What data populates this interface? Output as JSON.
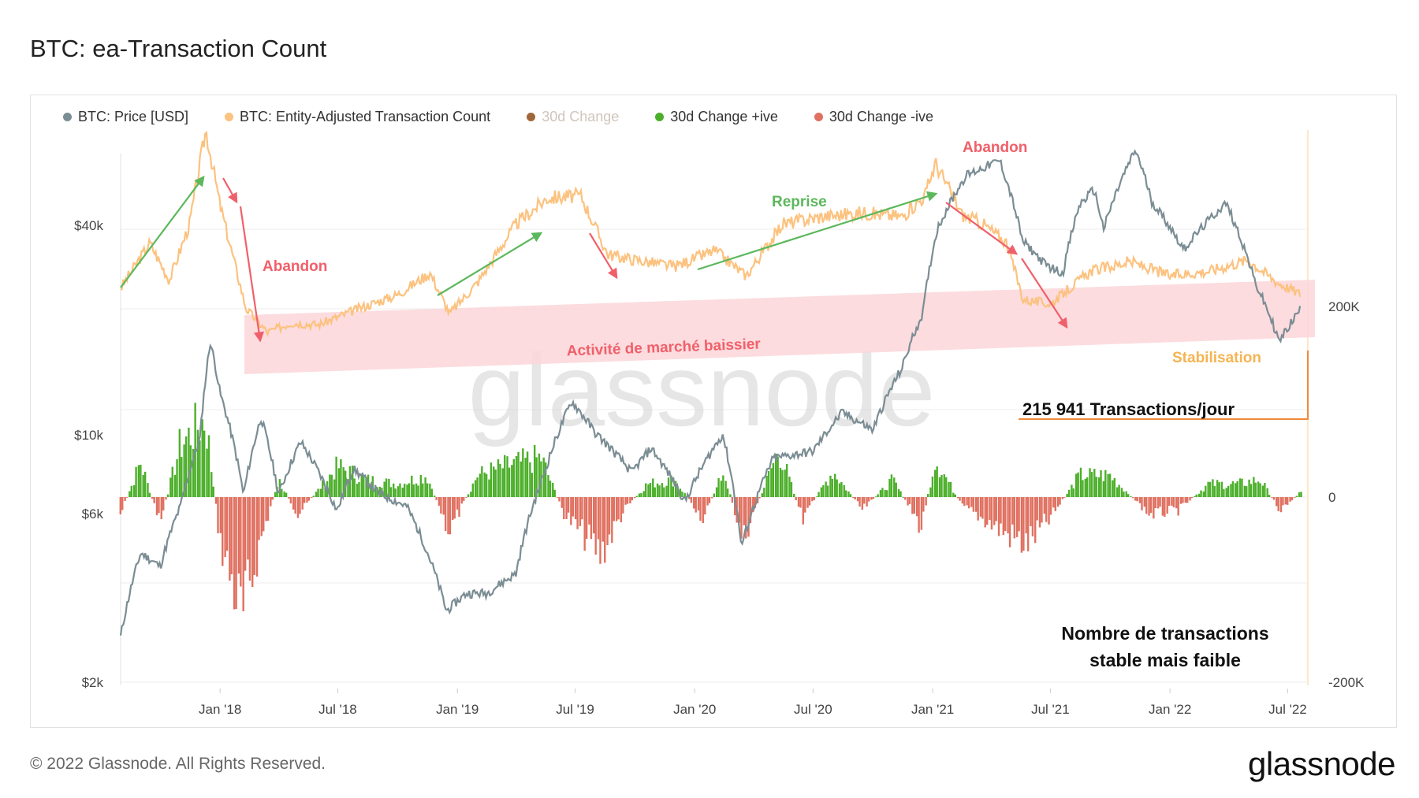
{
  "page": {
    "title": "BTC: ea-Transaction Count",
    "footer": "© 2022 Glassnode. All Rights Reserved.",
    "brand": "glassnode",
    "watermark": "glassnode"
  },
  "legend": [
    {
      "label": "BTC: Price [USD]",
      "color": "#7b8d94"
    },
    {
      "label": "BTC: Entity-Adjusted Transaction Count",
      "color": "#fcc27f"
    },
    {
      "label": "30d Change",
      "color": "#a0683a",
      "muted": true
    },
    {
      "label": "30d Change +ive",
      "color": "#4caf2a"
    },
    {
      "label": "30d Change -ive",
      "color": "#e07060"
    }
  ],
  "annotations": {
    "abandon_1": "Abandon",
    "abandon_2": "Abandon",
    "reprise": "Reprise",
    "bear_market": "Activité de marché baissier",
    "stabilisation": "Stabilisation",
    "tx_per_day": "215 941 Transactions/jour",
    "note_line1": "Nombre de transactions",
    "note_line2": "stable mais faible"
  },
  "colors": {
    "price": "#7b8d94",
    "tx": "#fcc27f",
    "positive": "#4caf2a",
    "negative": "#e07060",
    "band": "#fcd6d9",
    "arrow_up": "#5cb85c",
    "arrow_down": "#f0606a",
    "stabil": "#f5b453",
    "marker": "#f08a3c"
  },
  "chart_data": {
    "type": "line",
    "x_ticks": [
      "Jan '18",
      "Jul '18",
      "Jan '19",
      "Jul '19",
      "Jan '20",
      "Jul '20",
      "Jan '21",
      "Jul '21",
      "Jan '22",
      "Jul '22"
    ],
    "y_left_ticks": [
      "$40k",
      "$10k",
      "$6k",
      "$2k"
    ],
    "y_right_ticks": [
      "200K",
      "0",
      "-200K"
    ],
    "y_left_scale": "log",
    "series": [
      {
        "name": "BTC: Price [USD]",
        "points": [
          [
            "2017-08-01",
            2700
          ],
          [
            "2017-09-01",
            4700
          ],
          [
            "2017-10-01",
            4300
          ],
          [
            "2017-11-01",
            6400
          ],
          [
            "2017-12-01",
            10000
          ],
          [
            "2017-12-17",
            19000
          ],
          [
            "2018-01-01",
            13500
          ],
          [
            "2018-02-06",
            6900
          ],
          [
            "2018-03-05",
            11500
          ],
          [
            "2018-04-01",
            6900
          ],
          [
            "2018-05-05",
            9800
          ],
          [
            "2018-06-30",
            6200
          ],
          [
            "2018-07-25",
            8200
          ],
          [
            "2018-09-01",
            7000
          ],
          [
            "2018-10-15",
            6400
          ],
          [
            "2018-11-20",
            4500
          ],
          [
            "2018-12-15",
            3200
          ],
          [
            "2019-01-15",
            3600
          ],
          [
            "2019-02-15",
            3600
          ],
          [
            "2019-04-01",
            4100
          ],
          [
            "2019-05-15",
            8000
          ],
          [
            "2019-06-26",
            12800
          ],
          [
            "2019-08-01",
            10400
          ],
          [
            "2019-09-26",
            8000
          ],
          [
            "2019-10-26",
            9400
          ],
          [
            "2019-12-17",
            6600
          ],
          [
            "2020-02-13",
            10300
          ],
          [
            "2020-03-13",
            4900
          ],
          [
            "2020-05-01",
            8800
          ],
          [
            "2020-07-01",
            9200
          ],
          [
            "2020-08-15",
            11900
          ],
          [
            "2020-10-01",
            10600
          ],
          [
            "2020-11-15",
            16000
          ],
          [
            "2020-12-17",
            23000
          ],
          [
            "2021-01-08",
            40000
          ],
          [
            "2021-02-21",
            57000
          ],
          [
            "2021-04-14",
            63000
          ],
          [
            "2021-05-19",
            37000
          ],
          [
            "2021-06-22",
            31800
          ],
          [
            "2021-07-20",
            29800
          ],
          [
            "2021-08-15",
            47000
          ],
          [
            "2021-09-06",
            52000
          ],
          [
            "2021-09-21",
            40000
          ],
          [
            "2021-11-09",
            67500
          ],
          [
            "2021-12-04",
            48000
          ],
          [
            "2022-01-22",
            35000
          ],
          [
            "2022-03-28",
            47500
          ],
          [
            "2022-05-12",
            28000
          ],
          [
            "2022-06-18",
            19000
          ],
          [
            "2022-07-20",
            23500
          ]
        ]
      },
      {
        "name": "BTC: Entity-Adjusted Transaction Count",
        "points": [
          [
            "2017-08-01",
            222000
          ],
          [
            "2017-09-15",
            270000
          ],
          [
            "2017-10-15",
            230000
          ],
          [
            "2017-11-15",
            290000
          ],
          [
            "2017-12-10",
            390000
          ],
          [
            "2018-01-01",
            310000
          ],
          [
            "2018-02-10",
            200000
          ],
          [
            "2018-03-15",
            175000
          ],
          [
            "2018-04-20",
            185000
          ],
          [
            "2018-06-01",
            183000
          ],
          [
            "2018-08-01",
            200000
          ],
          [
            "2018-10-01",
            215000
          ],
          [
            "2018-11-20",
            238000
          ],
          [
            "2018-12-20",
            195000
          ],
          [
            "2019-02-01",
            228000
          ],
          [
            "2019-04-01",
            290000
          ],
          [
            "2019-05-20",
            318000
          ],
          [
            "2019-07-10",
            320000
          ],
          [
            "2019-08-20",
            258000
          ],
          [
            "2019-10-01",
            252000
          ],
          [
            "2019-12-01",
            245000
          ],
          [
            "2020-02-01",
            262000
          ],
          [
            "2020-03-20",
            235000
          ],
          [
            "2020-05-15",
            290000
          ],
          [
            "2020-07-15",
            298000
          ],
          [
            "2020-09-15",
            302000
          ],
          [
            "2020-11-15",
            298000
          ],
          [
            "2020-12-20",
            320000
          ],
          [
            "2021-01-05",
            355000
          ],
          [
            "2021-02-15",
            300000
          ],
          [
            "2021-03-20",
            290000
          ],
          [
            "2021-04-25",
            270000
          ],
          [
            "2021-05-20",
            210000
          ],
          [
            "2021-07-01",
            205000
          ],
          [
            "2021-09-01",
            240000
          ],
          [
            "2021-11-01",
            250000
          ],
          [
            "2022-01-01",
            235000
          ],
          [
            "2022-03-01",
            240000
          ],
          [
            "2022-05-01",
            252000
          ],
          [
            "2022-06-15",
            228000
          ],
          [
            "2022-07-20",
            215941
          ]
        ]
      },
      {
        "name": "30d Change +ive / -ive",
        "points": [
          [
            "2017-08-01",
            -20000
          ],
          [
            "2017-09-01",
            40000
          ],
          [
            "2017-10-01",
            -30000
          ],
          [
            "2017-11-01",
            60000
          ],
          [
            "2017-12-10",
            90000
          ],
          [
            "2018-01-01",
            -50000
          ],
          [
            "2018-02-05",
            -140000
          ],
          [
            "2018-03-01",
            -60000
          ],
          [
            "2018-04-01",
            20000
          ],
          [
            "2018-05-01",
            -20000
          ],
          [
            "2018-07-01",
            35000
          ],
          [
            "2018-08-15",
            20000
          ],
          [
            "2018-10-01",
            15000
          ],
          [
            "2018-11-15",
            25000
          ],
          [
            "2018-12-20",
            -40000
          ],
          [
            "2019-02-01",
            25000
          ],
          [
            "2019-03-15",
            35000
          ],
          [
            "2019-05-10",
            45000
          ],
          [
            "2019-06-15",
            -20000
          ],
          [
            "2019-08-10",
            -65000
          ],
          [
            "2019-09-15",
            -15000
          ],
          [
            "2019-10-20",
            15000
          ],
          [
            "2019-12-01",
            20000
          ],
          [
            "2020-01-15",
            -25000
          ],
          [
            "2020-02-15",
            30000
          ],
          [
            "2020-03-15",
            -50000
          ],
          [
            "2020-05-10",
            55000
          ],
          [
            "2020-06-15",
            -25000
          ],
          [
            "2020-08-01",
            30000
          ],
          [
            "2020-09-15",
            -15000
          ],
          [
            "2020-11-01",
            20000
          ],
          [
            "2020-12-15",
            -35000
          ],
          [
            "2021-01-05",
            45000
          ],
          [
            "2021-02-15",
            -10000
          ],
          [
            "2021-03-20",
            -25000
          ],
          [
            "2021-05-01",
            -45000
          ],
          [
            "2021-05-25",
            -55000
          ],
          [
            "2021-07-01",
            -25000
          ],
          [
            "2021-08-15",
            25000
          ],
          [
            "2021-10-01",
            25000
          ],
          [
            "2021-12-01",
            -20000
          ],
          [
            "2022-01-15",
            -15000
          ],
          [
            "2022-03-01",
            15000
          ],
          [
            "2022-04-15",
            15000
          ],
          [
            "2022-05-20",
            20000
          ],
          [
            "2022-06-20",
            -15000
          ],
          [
            "2022-07-20",
            5000
          ]
        ]
      }
    ]
  }
}
